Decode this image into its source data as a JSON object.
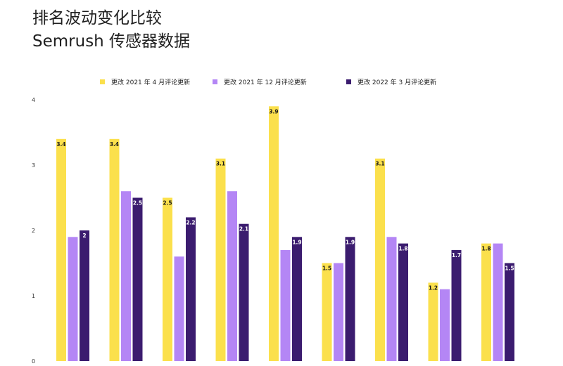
{
  "title": {
    "line1": "排名波动变化比较",
    "line2": "Semrush 传感器数据"
  },
  "colors": {
    "series1": "#fbe04c",
    "series2": "#b486f5",
    "series3": "#3b1c6f"
  },
  "chart_data": {
    "type": "bar",
    "categories": [
      "",
      "",
      "",
      "",
      "",
      "",
      "",
      "",
      ""
    ],
    "series": [
      {
        "name": "更改 2021 年 4 月评论更新",
        "values": [
          3.4,
          3.4,
          2.5,
          3.1,
          3.9,
          1.5,
          3.1,
          1.2,
          1.8
        ],
        "labels": [
          "3.4",
          "3.4",
          "2.5",
          "3.1",
          "3.9",
          "1.5",
          "3.1",
          "1.2",
          "1.8"
        ]
      },
      {
        "name": "更改 2021 年 12 月评论更新",
        "values": [
          1.9,
          2.6,
          1.6,
          2.6,
          1.7,
          1.5,
          1.9,
          1.1,
          1.8
        ],
        "labels": [
          "",
          "",
          "",
          "",
          "",
          "",
          "",
          "",
          ""
        ]
      },
      {
        "name": "更改 2022 年 3 月评论更新",
        "values": [
          2.0,
          2.5,
          2.2,
          2.1,
          1.9,
          1.9,
          1.8,
          1.7,
          1.5
        ],
        "labels": [
          "2",
          "2.5",
          "2.2",
          "2.1",
          "1.9",
          "1.9",
          "1.8",
          "1.7",
          "1.5"
        ]
      }
    ],
    "ylim": [
      0,
      4
    ],
    "yticks": [
      "0",
      "1",
      "2",
      "3",
      "4"
    ],
    "grid": false,
    "legend": "top"
  }
}
